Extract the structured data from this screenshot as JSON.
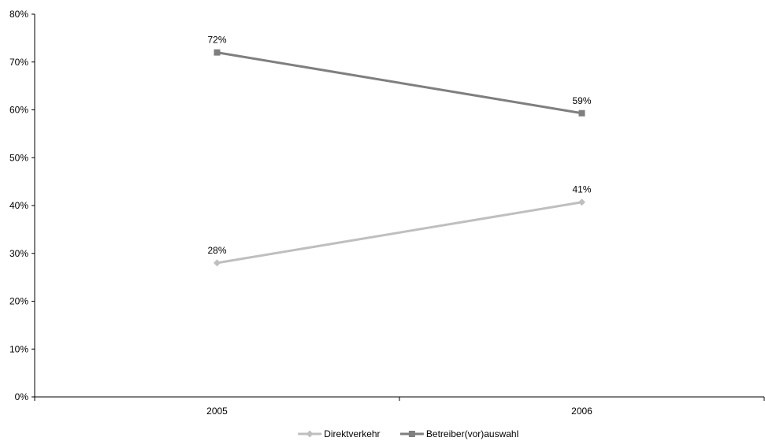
{
  "chart_data": {
    "type": "line",
    "title": "",
    "xlabel": "",
    "ylabel": "",
    "categories": [
      "2005",
      "2006"
    ],
    "ylim": [
      0,
      80
    ],
    "y_ticks": [
      0,
      10,
      20,
      30,
      40,
      50,
      60,
      70,
      80
    ],
    "y_tick_labels": [
      "0%",
      "10%",
      "20%",
      "30%",
      "40%",
      "50%",
      "60%",
      "70%",
      "80%"
    ],
    "grid": false,
    "legend_position": "bottom",
    "series": [
      {
        "name": "Direktverkehr",
        "values": [
          28,
          40.7
        ],
        "data_labels": [
          "28%",
          "41%"
        ],
        "color": "#bfbfbf",
        "marker": "diamond"
      },
      {
        "name": "Betreiber(vor)auswahl",
        "values": [
          72,
          59.3
        ],
        "data_labels": [
          "72%",
          "59%"
        ],
        "color": "#7f7f7f",
        "marker": "square"
      }
    ]
  }
}
